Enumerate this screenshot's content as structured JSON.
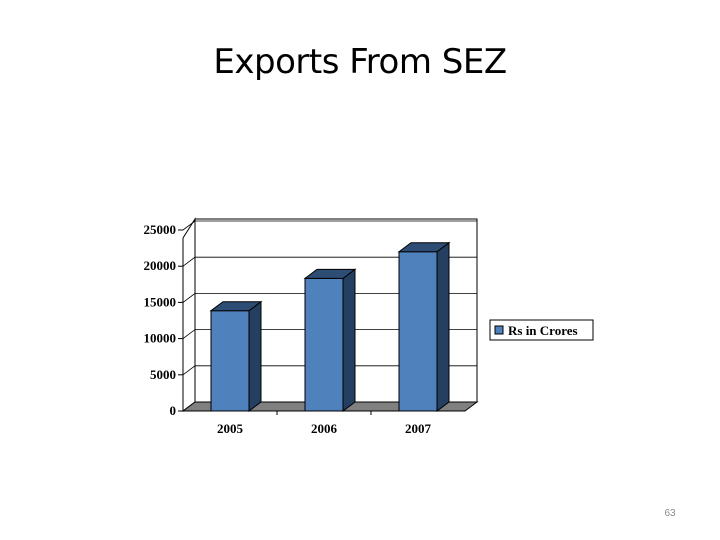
{
  "slide": {
    "title": "Exports From SEZ",
    "page_number": "63"
  },
  "chart_data": {
    "type": "bar",
    "title": "",
    "xlabel": "",
    "ylabel": "",
    "categories": [
      "2005",
      "2006",
      "2007"
    ],
    "series": [
      {
        "name": "Rs in Crores",
        "values": [
          13854,
          18314,
          22000
        ],
        "color": "#4f81bd"
      }
    ],
    "ylim": [
      0,
      25000
    ],
    "yticks": [
      "0",
      "5000",
      "10000",
      "15000",
      "20000",
      "25000"
    ],
    "grid": true,
    "legend": "right",
    "style": "3d-column"
  }
}
